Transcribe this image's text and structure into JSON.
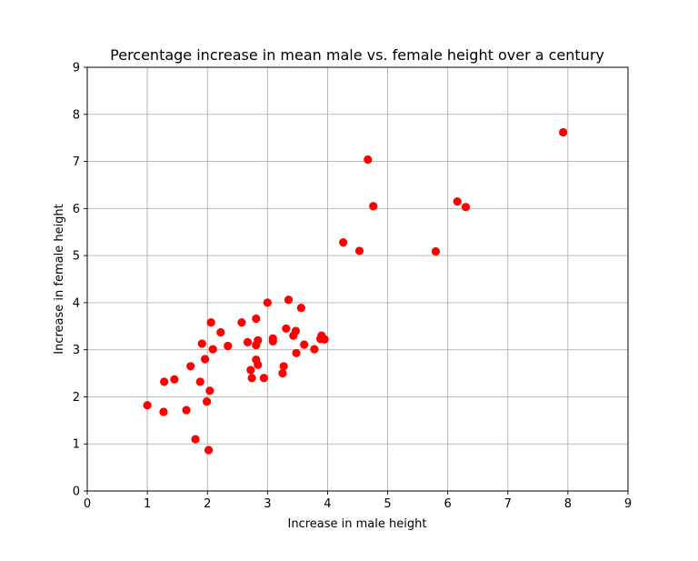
{
  "chart_data": {
    "type": "scatter",
    "title": "Percentage increase in mean male vs. female height over a century",
    "xlabel": "Increase in male height",
    "ylabel": "Increase in female height",
    "xlim": [
      0,
      9
    ],
    "ylim": [
      0,
      9
    ],
    "xticks": [
      "0",
      "1",
      "2",
      "3",
      "4",
      "5",
      "6",
      "7",
      "8",
      "9"
    ],
    "yticks": [
      "0",
      "1",
      "2",
      "3",
      "4",
      "5",
      "6",
      "7",
      "8",
      "9"
    ],
    "grid": true,
    "marker_color": "#ff0000",
    "points": [
      [
        1.0,
        1.82
      ],
      [
        1.27,
        1.68
      ],
      [
        1.28,
        2.32
      ],
      [
        1.45,
        2.37
      ],
      [
        1.65,
        1.72
      ],
      [
        1.72,
        2.65
      ],
      [
        1.8,
        1.1
      ],
      [
        1.88,
        2.32
      ],
      [
        1.91,
        3.13
      ],
      [
        1.96,
        2.8
      ],
      [
        1.99,
        1.9
      ],
      [
        2.02,
        0.87
      ],
      [
        2.04,
        2.13
      ],
      [
        2.06,
        3.58
      ],
      [
        2.09,
        3.01
      ],
      [
        2.22,
        3.37
      ],
      [
        2.34,
        3.08
      ],
      [
        2.57,
        3.58
      ],
      [
        2.67,
        3.16
      ],
      [
        2.72,
        2.57
      ],
      [
        2.74,
        2.4
      ],
      [
        2.81,
        3.66
      ],
      [
        2.81,
        2.79
      ],
      [
        2.81,
        3.1
      ],
      [
        2.84,
        3.2
      ],
      [
        2.84,
        2.68
      ],
      [
        2.94,
        2.4
      ],
      [
        3.0,
        4.0
      ],
      [
        3.09,
        3.24
      ],
      [
        3.09,
        3.18
      ],
      [
        3.25,
        2.5
      ],
      [
        3.27,
        2.65
      ],
      [
        3.31,
        3.45
      ],
      [
        3.35,
        4.06
      ],
      [
        3.43,
        3.3
      ],
      [
        3.47,
        3.4
      ],
      [
        3.48,
        2.93
      ],
      [
        3.56,
        3.89
      ],
      [
        3.61,
        3.11
      ],
      [
        3.78,
        3.01
      ],
      [
        3.88,
        3.23
      ],
      [
        3.9,
        3.3
      ],
      [
        3.95,
        3.22
      ],
      [
        4.26,
        5.28
      ],
      [
        4.53,
        5.1
      ],
      [
        4.67,
        7.04
      ],
      [
        4.76,
        6.05
      ],
      [
        5.8,
        5.09
      ],
      [
        6.16,
        6.15
      ],
      [
        6.3,
        6.03
      ],
      [
        7.92,
        7.62
      ]
    ]
  }
}
